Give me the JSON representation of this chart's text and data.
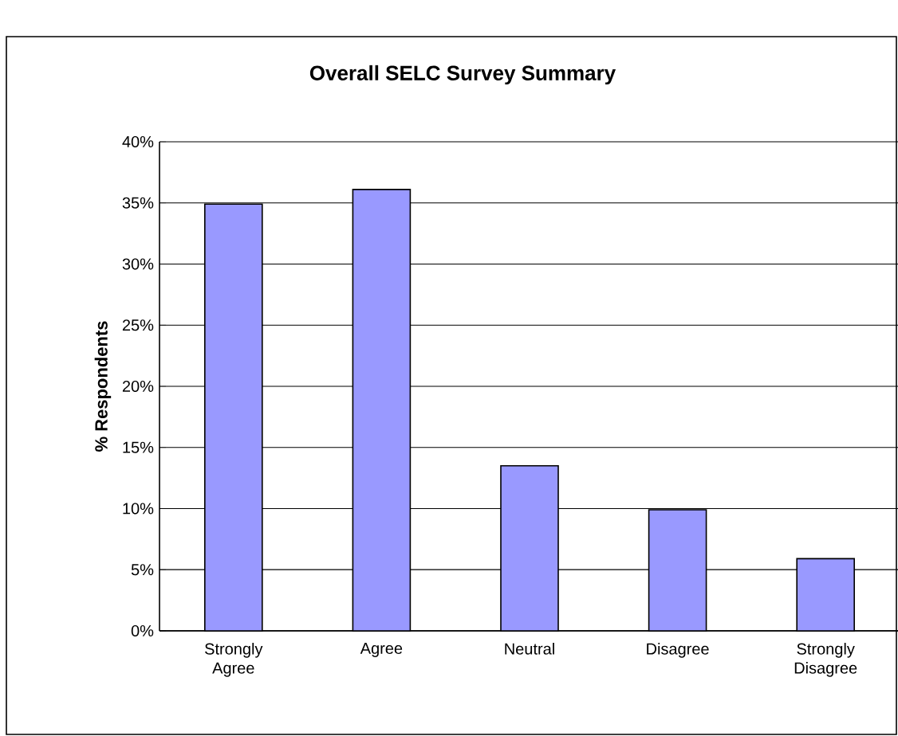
{
  "chart_data": {
    "type": "bar",
    "title": "Overall SELC Survey Summary",
    "ylabel": "% Respondents",
    "categories": [
      "Strongly Agree",
      "Agree",
      "Neutral",
      "Disagree",
      "Strongly Disagree"
    ],
    "values": [
      34.9,
      36.1,
      13.5,
      9.9,
      5.9
    ],
    "color": "#9999ff",
    "ylim": [
      0,
      40
    ],
    "yticks": [
      {
        "value": 0,
        "label": "0%"
      },
      {
        "value": 5,
        "label": "5%"
      },
      {
        "value": 10,
        "label": "10%"
      },
      {
        "value": 15,
        "label": "15%"
      },
      {
        "value": 20,
        "label": "20%"
      },
      {
        "value": 25,
        "label": "25%"
      },
      {
        "value": 30,
        "label": "30%"
      },
      {
        "value": 35,
        "label": "35%"
      },
      {
        "value": 40,
        "label": "40%"
      }
    ],
    "grid": "y"
  }
}
